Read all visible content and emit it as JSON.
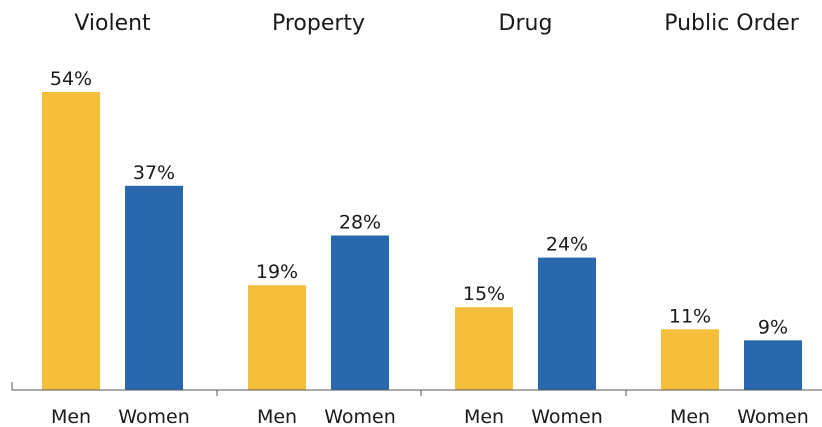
{
  "chart_data": {
    "type": "bar",
    "categories": [
      "Violent",
      "Property",
      "Drug",
      "Public Order"
    ],
    "series": [
      {
        "name": "Men",
        "values": [
          54,
          19,
          15,
          11
        ],
        "labels": [
          "54%",
          "19%",
          "15%",
          "11%"
        ],
        "color": "#F4BF3A"
      },
      {
        "name": "Women",
        "values": [
          37,
          28,
          24,
          9
        ],
        "labels": [
          "37%",
          "28%",
          "24%",
          "9%"
        ],
        "color": "#2968AD"
      }
    ],
    "title": "",
    "xlabel": "",
    "ylabel": "",
    "ylim": [
      0,
      54
    ],
    "grid": false,
    "legend": "none"
  }
}
